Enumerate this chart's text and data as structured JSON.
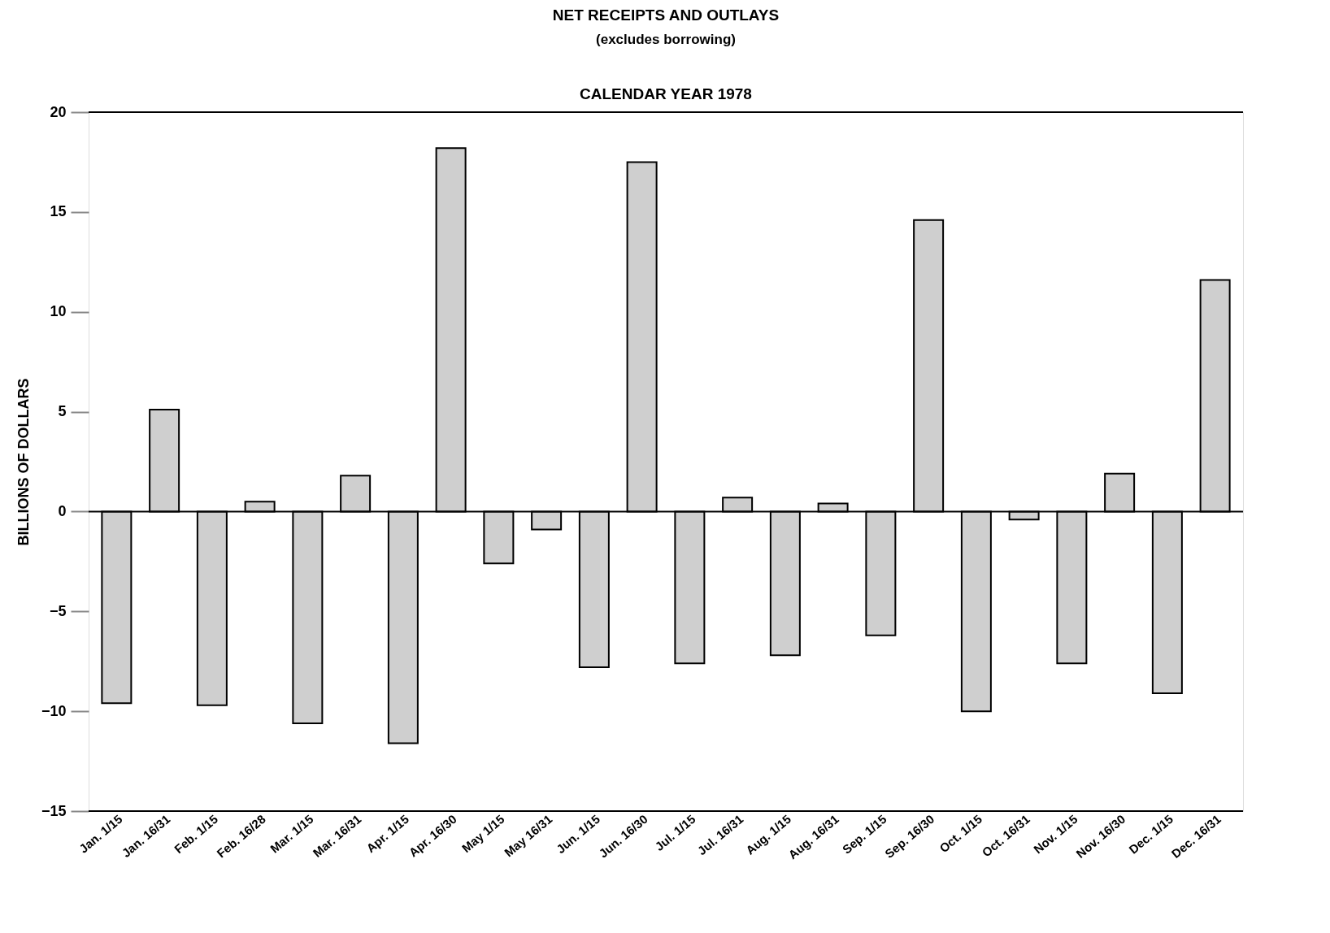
{
  "chart_data": {
    "type": "bar",
    "title": "NET RECEIPTS AND OUTLAYS",
    "subtitle": "(excludes borrowing)",
    "annotations": [
      "CALENDAR YEAR 1978"
    ],
    "ylabel": "BILLIONS OF DOLLARS",
    "categories": [
      "Jan. 1/15",
      "Jan. 16/31",
      "Feb. 1/15",
      "Feb. 16/28",
      "Mar. 1/15",
      "Mar. 16/31",
      "Apr. 1/15",
      "Apr. 16/30",
      "May 1/15",
      "May 16/31",
      "Jun. 1/15",
      "Jun. 16/30",
      "Jul. 1/15",
      "Jul. 16/31",
      "Aug. 1/15",
      "Aug. 16/31",
      "Sep. 1/15",
      "Sep. 16/30",
      "Oct. 1/15",
      "Oct. 16/31",
      "Nov. 1/15",
      "Nov. 16/30",
      "Dec. 1/15",
      "Dec. 16/31"
    ],
    "values": [
      -9.6,
      5.1,
      -9.7,
      0.5,
      -10.6,
      1.8,
      -11.6,
      18.2,
      -2.6,
      -0.9,
      -7.8,
      17.5,
      -7.6,
      0.7,
      -7.2,
      0.4,
      -6.2,
      14.6,
      -10.0,
      -0.4,
      -7.6,
      1.9,
      -9.1,
      11.6
    ],
    "color": "#cfcfcf",
    "ylim": [
      -15,
      20
    ],
    "yticks": [
      -15,
      -10,
      -5,
      0,
      5,
      10,
      15,
      20
    ],
    "grid": false,
    "ref_lines": [
      {
        "axis": "y",
        "value": 0
      }
    ]
  }
}
